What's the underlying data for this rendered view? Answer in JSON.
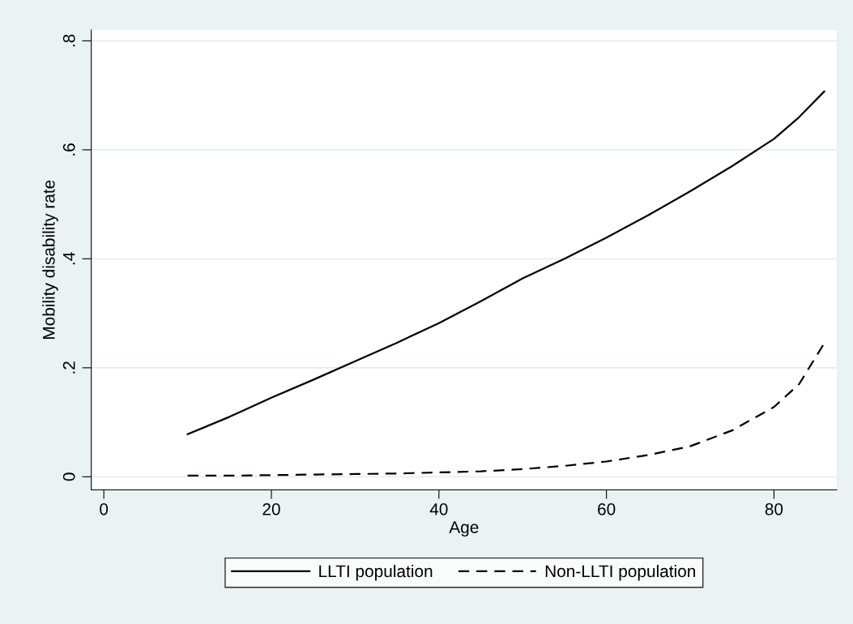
{
  "chart_data": {
    "type": "line",
    "xlabel": "Age",
    "ylabel": "Mobility disability rate",
    "x": [
      10,
      15,
      20,
      25,
      30,
      35,
      40,
      45,
      50,
      55,
      60,
      65,
      70,
      75,
      80,
      83,
      86
    ],
    "series": [
      {
        "name": "LLTI population",
        "color": "#000000",
        "line_style": "solid",
        "values": [
          0.078,
          0.11,
          0.145,
          0.178,
          0.212,
          0.246,
          0.282,
          0.322,
          0.364,
          0.4,
          0.439,
          0.48,
          0.524,
          0.57,
          0.62,
          0.66,
          0.707
        ]
      },
      {
        "name": "Non-LLTI population",
        "color": "#000000",
        "line_style": "dashed",
        "values": [
          0.002,
          0.002,
          0.003,
          0.004,
          0.005,
          0.006,
          0.008,
          0.01,
          0.014,
          0.02,
          0.028,
          0.04,
          0.056,
          0.085,
          0.128,
          0.17,
          0.245
        ]
      }
    ],
    "xlim": [
      -1.5,
      87.5
    ],
    "ylim": [
      -0.024,
      0.82
    ],
    "xticks": [
      0,
      20,
      40,
      60,
      80
    ],
    "yticks": [
      {
        "value": 0,
        "label": "0"
      },
      {
        "value": 0.2,
        "label": ".2"
      },
      {
        "value": 0.4,
        "label": ".4"
      },
      {
        "value": 0.6,
        "label": ".6"
      },
      {
        "value": 0.8,
        "label": ".8"
      }
    ],
    "grid": "y",
    "legend": "bottom",
    "marker": "none"
  }
}
